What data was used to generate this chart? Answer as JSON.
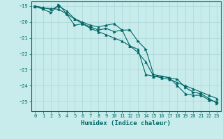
{
  "xlabel": "Humidex (Indice chaleur)",
  "background_color": "#c8ecec",
  "grid_color": "#aad4d4",
  "line_color": "#006666",
  "xlim": [
    -0.5,
    23.5
  ],
  "ylim": [
    -25.6,
    -18.7
  ],
  "yticks": [
    -19,
    -20,
    -21,
    -22,
    -23,
    -24,
    -25
  ],
  "xticks": [
    0,
    1,
    2,
    3,
    4,
    5,
    6,
    7,
    8,
    9,
    10,
    11,
    12,
    13,
    14,
    15,
    16,
    17,
    18,
    19,
    20,
    21,
    22,
    23
  ],
  "series1_x": [
    0,
    1,
    2,
    3,
    4,
    5,
    6,
    7,
    8,
    9,
    10,
    11,
    12,
    13,
    14,
    15,
    16,
    17,
    18,
    19,
    20,
    21,
    22,
    23
  ],
  "series1_y": [
    -19.0,
    -19.1,
    -19.2,
    -19.0,
    -19.3,
    -19.8,
    -20.0,
    -20.2,
    -20.3,
    -20.2,
    -20.1,
    -20.5,
    -21.5,
    -21.7,
    -23.3,
    -23.4,
    -23.4,
    -23.5,
    -24.0,
    -24.5,
    -24.6,
    -24.6,
    -24.9,
    -25.0
  ],
  "series2_x": [
    0,
    1,
    2,
    3,
    4,
    5,
    6,
    7,
    8,
    9,
    10,
    11,
    12,
    13,
    14,
    15,
    16,
    17,
    18,
    19,
    20,
    21,
    22,
    23
  ],
  "series2_y": [
    -19.0,
    -19.2,
    -19.4,
    -18.9,
    -19.5,
    -20.2,
    -20.1,
    -20.3,
    -20.5,
    -20.4,
    -20.6,
    -20.5,
    -20.5,
    -21.2,
    -21.7,
    -23.3,
    -23.4,
    -23.5,
    -23.6,
    -24.1,
    -24.4,
    -24.5,
    -24.8,
    -25.1
  ],
  "series3_x": [
    0,
    1,
    2,
    3,
    4,
    5,
    6,
    7,
    8,
    9,
    10,
    11,
    12,
    13,
    14,
    15,
    16,
    17,
    18,
    19,
    20,
    21,
    22,
    23
  ],
  "series3_y": [
    -19.0,
    -19.1,
    -19.15,
    -19.2,
    -19.5,
    -19.8,
    -20.1,
    -20.4,
    -20.6,
    -20.8,
    -21.0,
    -21.2,
    -21.5,
    -21.9,
    -22.5,
    -23.4,
    -23.5,
    -23.6,
    -23.8,
    -24.0,
    -24.2,
    -24.4,
    -24.6,
    -24.8
  ]
}
